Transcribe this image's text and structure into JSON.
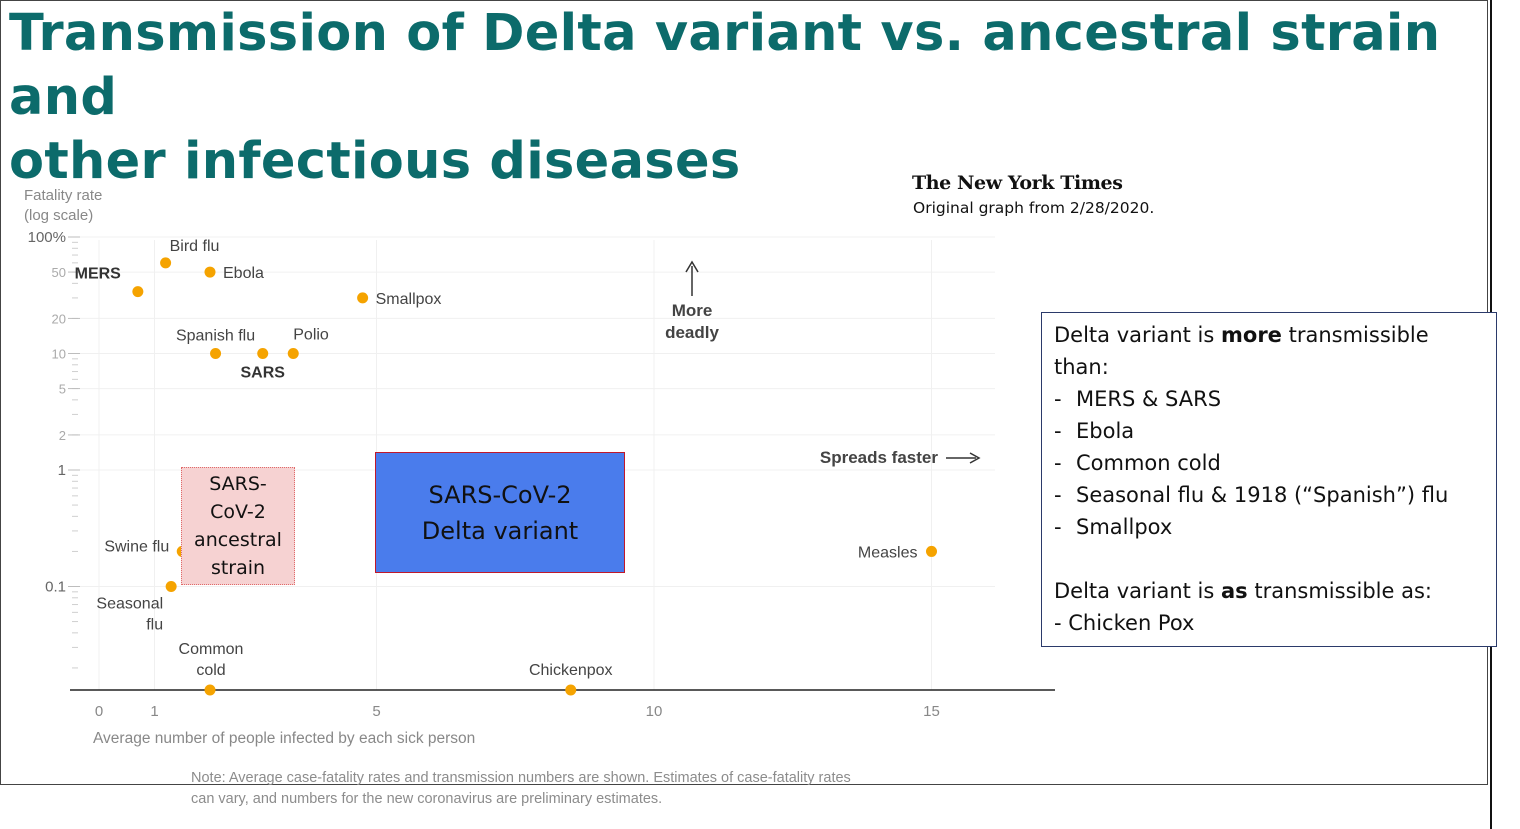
{
  "title": {
    "line1": "Transmission of Delta variant vs. ancestral strain and",
    "line2": "other infectious diseases"
  },
  "source": {
    "logo_text": "The New York Times",
    "note": "Original graph from 2/28/2020."
  },
  "chart_data": {
    "type": "scatter",
    "ylabel_line1": "Fatality rate",
    "ylabel_line2": "(log scale)",
    "xlabel": "Average number of people infected by each sick person",
    "x_scale": "linear",
    "y_scale": "log",
    "xlim": [
      0,
      17
    ],
    "ylim": [
      0.01,
      100
    ],
    "grid": true,
    "x_ticks": [
      {
        "value": 0,
        "label": "0"
      },
      {
        "value": 1,
        "label": "1"
      },
      {
        "value": 5,
        "label": "5"
      },
      {
        "value": 10,
        "label": "10"
      },
      {
        "value": 15,
        "label": "15"
      }
    ],
    "y_ticks": [
      {
        "value": 100,
        "label": "100%"
      },
      {
        "value": 50,
        "label": "50"
      },
      {
        "value": 20,
        "label": "20"
      },
      {
        "value": 10,
        "label": "10"
      },
      {
        "value": 5,
        "label": "5"
      },
      {
        "value": 2,
        "label": "2"
      },
      {
        "value": 1,
        "label": "1"
      },
      {
        "value": 0.1,
        "label": "0.1"
      }
    ],
    "point_color": "#f5a300",
    "points": [
      {
        "name": "MERS",
        "x": 0.7,
        "y": 34,
        "bold": true
      },
      {
        "name": "Bird flu",
        "x": 1.2,
        "y": 60,
        "bold": false
      },
      {
        "name": "Ebola",
        "x": 2.0,
        "y": 50,
        "bold": false
      },
      {
        "name": "Smallpox",
        "x": 4.75,
        "y": 30,
        "bold": false
      },
      {
        "name": "Spanish flu",
        "x": 2.1,
        "y": 10,
        "bold": false
      },
      {
        "name": "SARS",
        "x": 2.95,
        "y": 10,
        "bold": true
      },
      {
        "name": "Polio",
        "x": 3.5,
        "y": 10,
        "bold": false
      },
      {
        "name": "Swine flu",
        "x": 1.5,
        "y": 0.2,
        "bold": false
      },
      {
        "name": "Seasonal flu",
        "x": 1.3,
        "y": 0.1,
        "bold": false
      },
      {
        "name": "Measles",
        "x": 15,
        "y": 0.2,
        "bold": false
      },
      {
        "name": "Common cold",
        "x": 2.0,
        "y": 0.01,
        "bold": false
      },
      {
        "name": "Chickenpox",
        "x": 8.5,
        "y": 0.01,
        "bold": false
      }
    ],
    "annotations": {
      "more_deadly_line1": "More",
      "more_deadly_line2": "deadly",
      "spreads_faster": "Spreads faster"
    },
    "highlight_boxes": {
      "ancestral": {
        "x_range": [
          1.5,
          3.5
        ],
        "y_range": [
          0.1,
          1
        ],
        "fill": "#f6d2d2",
        "border": "#e06a6a",
        "label_lines": [
          "SARS-",
          "CoV-2",
          "ancestral",
          "strain"
        ]
      },
      "delta": {
        "x_range": [
          5,
          9.5
        ],
        "y_range": [
          0.12,
          1.3
        ],
        "fill": "#4a7cec",
        "border": "#c0182a",
        "label_lines": [
          "SARS-CoV-2",
          "Delta variant"
        ]
      }
    }
  },
  "info_box": {
    "intro_prefix": "Delta variant is ",
    "intro_bold": "more",
    "intro_suffix": " transmissible than:",
    "items": [
      "MERS & SARS",
      "Ebola",
      "Common cold",
      "Seasonal flu & 1918 (“Spanish”) flu",
      "Smallpox"
    ],
    "item_dash": "-",
    "second_prefix": "Delta variant is ",
    "second_bold": "as",
    "second_suffix": " transmissible as:",
    "second_item": "- Chicken Pox"
  },
  "note": {
    "line1": "Note: Average case-fatality rates and transmission numbers are shown. Estimates of case-fatality rates",
    "line2": "can vary, and numbers for the new coronavirus are preliminary estimates."
  }
}
